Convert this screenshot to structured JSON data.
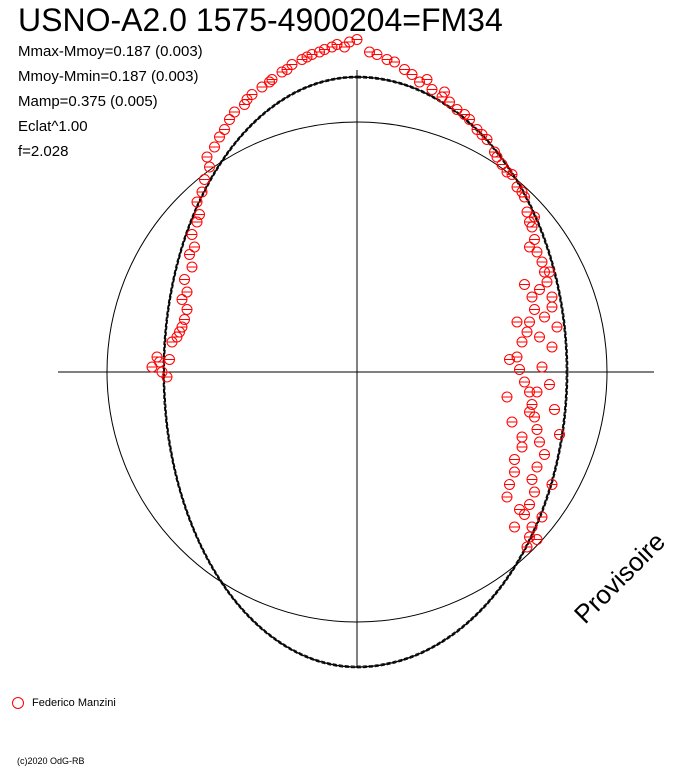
{
  "chart_data": {
    "type": "polar-scatter",
    "title": "USNO-A2.0 1575-4900204=FM34",
    "stats": {
      "mmax_mmoy": "Mmax-Mmoy=0.187 (0.003)",
      "mmoy_mmin": "Mmoy-Mmin=0.187 (0.003)",
      "mamp": "Mamp=0.375 (0.005)",
      "eclat": "Eclat^1.00",
      "f": "f=2.028"
    },
    "reference_circle_radius": 1.0,
    "series": [
      {
        "name": "Federico Manzini",
        "color": "#ff0000",
        "marker": "open-circle-crossed",
        "points": [
          [
            -0.82,
            0.02
          ],
          [
            -0.8,
            0.06
          ],
          [
            -0.78,
            0.0
          ],
          [
            -0.76,
            -0.02
          ],
          [
            -0.79,
            0.04
          ],
          [
            -0.75,
            0.05
          ],
          [
            -0.74,
            0.12
          ],
          [
            -0.72,
            0.14
          ],
          [
            -0.7,
            0.18
          ],
          [
            -0.69,
            0.21
          ],
          [
            -0.71,
            0.16
          ],
          [
            -0.68,
            0.25
          ],
          [
            -0.7,
            0.29
          ],
          [
            -0.68,
            0.32
          ],
          [
            -0.69,
            0.37
          ],
          [
            -0.66,
            0.42
          ],
          [
            -0.67,
            0.47
          ],
          [
            -0.65,
            0.5
          ],
          [
            -0.66,
            0.55
          ],
          [
            -0.64,
            0.6
          ],
          [
            -0.63,
            0.63
          ],
          [
            -0.64,
            0.68
          ],
          [
            -0.62,
            0.72
          ],
          [
            -0.61,
            0.77
          ],
          [
            -0.59,
            0.82
          ],
          [
            -0.6,
            0.86
          ],
          [
            -0.57,
            0.9
          ],
          [
            -0.55,
            0.94
          ],
          [
            -0.53,
            0.97
          ],
          [
            -0.51,
            1.01
          ],
          [
            -0.49,
            1.04
          ],
          [
            -0.45,
            1.07
          ],
          [
            -0.42,
            1.11
          ],
          [
            -0.38,
            1.14
          ],
          [
            -0.34,
            1.17
          ],
          [
            -0.3,
            1.2
          ],
          [
            -0.26,
            1.23
          ],
          [
            -0.22,
            1.25
          ],
          [
            -0.18,
            1.27
          ],
          [
            -0.13,
            1.29
          ],
          [
            -0.08,
            1.31
          ],
          [
            -0.03,
            1.32
          ],
          [
            0.0,
            1.33
          ],
          [
            -0.1,
            1.3
          ],
          [
            -0.2,
            1.26
          ],
          [
            -0.28,
            1.21
          ],
          [
            -0.35,
            1.16
          ],
          [
            -0.44,
            1.09
          ],
          [
            0.08,
            1.27
          ],
          [
            0.15,
            1.24
          ],
          [
            0.19,
            1.21
          ],
          [
            0.22,
            1.19
          ],
          [
            0.25,
            1.16
          ],
          [
            0.3,
            1.13
          ],
          [
            0.34,
            1.1
          ],
          [
            0.37,
            1.08
          ],
          [
            0.4,
            1.05
          ],
          [
            0.45,
            1.01
          ],
          [
            0.48,
            0.97
          ],
          [
            0.52,
            0.93
          ],
          [
            0.55,
            0.88
          ],
          [
            0.58,
            0.83
          ],
          [
            0.62,
            0.79
          ],
          [
            0.64,
            0.74
          ],
          [
            0.67,
            0.7
          ],
          [
            0.68,
            0.64
          ],
          [
            0.7,
            0.58
          ],
          [
            0.71,
            0.53
          ],
          [
            0.72,
            0.48
          ],
          [
            0.74,
            0.44
          ],
          [
            0.75,
            0.4
          ],
          [
            0.76,
            0.36
          ],
          [
            0.73,
            0.33
          ],
          [
            0.7,
            0.3
          ],
          [
            0.71,
            0.25
          ],
          [
            0.69,
            0.2
          ],
          [
            0.68,
            0.16
          ],
          [
            0.66,
            0.12
          ],
          [
            0.64,
            0.06
          ],
          [
            0.65,
            0.01
          ],
          [
            0.67,
            -0.04
          ],
          [
            0.69,
            -0.08
          ],
          [
            0.7,
            -0.13
          ],
          [
            0.71,
            -0.18
          ],
          [
            0.72,
            -0.23
          ],
          [
            0.73,
            -0.28
          ],
          [
            0.75,
            -0.33
          ],
          [
            0.72,
            -0.38
          ],
          [
            0.7,
            -0.43
          ],
          [
            0.71,
            -0.48
          ],
          [
            0.69,
            -0.53
          ],
          [
            0.67,
            -0.57
          ],
          [
            0.7,
            -0.62
          ],
          [
            0.72,
            -0.67
          ],
          [
            0.68,
            -0.7
          ],
          [
            0.63,
            -0.62
          ],
          [
            0.6,
            -0.5
          ],
          [
            0.63,
            -0.4
          ],
          [
            0.66,
            -0.3
          ],
          [
            0.62,
            -0.2
          ],
          [
            0.6,
            -0.1
          ],
          [
            0.61,
            0.05
          ],
          [
            0.64,
            0.2
          ],
          [
            0.67,
            0.35
          ],
          [
            0.69,
            0.5
          ],
          [
            0.71,
            0.62
          ],
          [
            0.78,
            0.26
          ],
          [
            0.8,
            0.18
          ],
          [
            0.78,
            0.1
          ],
          [
            0.77,
            -0.05
          ],
          [
            0.79,
            -0.15
          ],
          [
            0.81,
            -0.25
          ],
          [
            0.78,
            -0.45
          ],
          [
            0.74,
            -0.58
          ],
          [
            0.69,
            -0.66
          ],
          [
            0.65,
            -0.55
          ],
          [
            0.61,
            -0.45
          ],
          [
            0.63,
            -0.35
          ],
          [
            0.66,
            -0.26
          ],
          [
            0.69,
            -0.16
          ],
          [
            0.72,
            -0.08
          ],
          [
            0.74,
            0.02
          ],
          [
            0.73,
            0.14
          ],
          [
            0.75,
            0.22
          ],
          [
            0.78,
            0.3
          ],
          [
            0.77,
            0.4
          ],
          [
            0.69,
            0.6
          ],
          [
            0.66,
            0.72
          ],
          [
            0.6,
            0.8
          ],
          [
            0.56,
            0.86
          ],
          [
            0.5,
            0.95
          ],
          [
            0.43,
            1.03
          ],
          [
            0.35,
            1.12
          ],
          [
            0.28,
            1.17
          ],
          [
            0.12,
            1.25
          ],
          [
            0.05,
            1.28
          ],
          [
            -0.05,
            1.3
          ],
          [
            -0.15,
            1.28
          ]
        ]
      }
    ]
  },
  "legend": {
    "label": "Federico Manzini"
  },
  "watermark": "Provisoire",
  "footer": "(c)2020 OdG-RB",
  "colors": {
    "data": "#ff0000",
    "axes": "#000000",
    "background": "#ffffff"
  }
}
